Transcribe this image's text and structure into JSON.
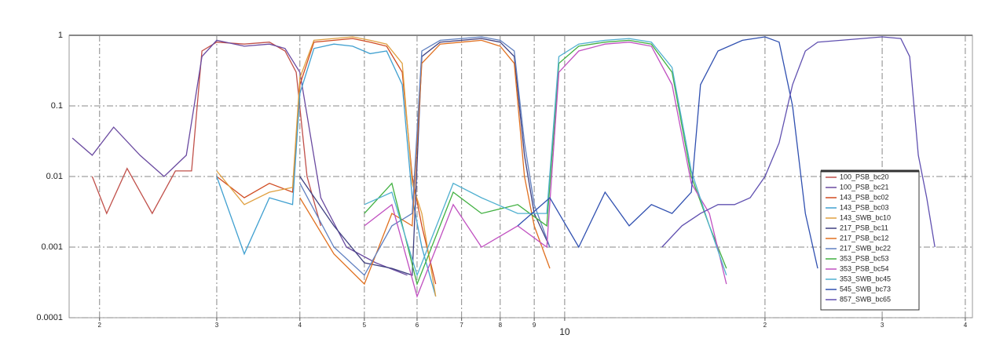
{
  "chart_data": {
    "type": "line",
    "log_x": true,
    "log_y": true,
    "grid": true,
    "legend": "lower right",
    "xlim": [
      1.8,
      41
    ],
    "ylim": [
      0.0001,
      1
    ],
    "xticks": [
      2,
      3,
      4,
      5,
      6,
      7,
      8,
      9,
      10,
      {
        "value": 20,
        "label": "2"
      },
      {
        "value": 30,
        "label": "3"
      },
      {
        "value": 40,
        "label": "4"
      }
    ],
    "yticks": [
      1,
      0.1,
      0.01,
      0.001,
      0.0001
    ],
    "series": [
      {
        "name": "100_PSB_bc20",
        "color": "#c0504a",
        "x": [
          1.95,
          2.05,
          2.2,
          2.4,
          2.6,
          2.75,
          2.85,
          3.0,
          3.3,
          3.6,
          3.8,
          3.95,
          4.1,
          4.3
        ],
        "values": [
          0.01,
          0.003,
          0.013,
          0.003,
          0.012,
          0.012,
          0.6,
          0.8,
          0.75,
          0.8,
          0.6,
          0.3,
          0.01,
          0.002
        ]
      },
      {
        "name": "100_PSB_bc21",
        "color": "#6a4aa0",
        "x": [
          1.82,
          1.95,
          2.1,
          2.3,
          2.5,
          2.7,
          2.85,
          3.0,
          3.3,
          3.6,
          3.8,
          4.0,
          4.3,
          4.7,
          5.2,
          5.8
        ],
        "values": [
          0.035,
          0.02,
          0.05,
          0.02,
          0.01,
          0.02,
          0.5,
          0.85,
          0.7,
          0.75,
          0.65,
          0.3,
          0.005,
          0.001,
          0.0006,
          0.0004
        ]
      },
      {
        "name": "143_PSB_bc02",
        "color": "#d04a20",
        "x": [
          3.0,
          3.3,
          3.6,
          3.9,
          4.0,
          4.2,
          4.5,
          4.8,
          5.1,
          5.4,
          5.7,
          5.9,
          6.1,
          6.4
        ],
        "values": [
          0.01,
          0.005,
          0.008,
          0.006,
          0.2,
          0.8,
          0.85,
          0.9,
          0.8,
          0.7,
          0.3,
          0.01,
          0.002,
          0.0003
        ]
      },
      {
        "name": "143_PSB_bc03",
        "color": "#40a0d0",
        "x": [
          3.0,
          3.3,
          3.6,
          3.9,
          4.0,
          4.2,
          4.5,
          4.8,
          5.1,
          5.4,
          5.7,
          5.9,
          6.1,
          6.4
        ],
        "values": [
          0.01,
          0.0008,
          0.005,
          0.004,
          0.15,
          0.65,
          0.75,
          0.7,
          0.55,
          0.6,
          0.2,
          0.005,
          0.001,
          0.0002
        ]
      },
      {
        "name": "143_SWB_bc10",
        "color": "#e0a040",
        "x": [
          3.0,
          3.3,
          3.6,
          3.9,
          4.0,
          4.2,
          4.5,
          4.8,
          5.1,
          5.4,
          5.7,
          5.9,
          6.1,
          6.4
        ],
        "values": [
          0.012,
          0.004,
          0.006,
          0.007,
          0.25,
          0.85,
          0.9,
          0.95,
          0.85,
          0.75,
          0.4,
          0.008,
          0.003,
          0.0002
        ]
      },
      {
        "name": "217_PSB_bc11",
        "color": "#404080",
        "x": [
          4.0,
          4.5,
          5.0,
          5.5,
          5.9,
          6.1,
          6.5,
          7.0,
          7.5,
          8.0,
          8.4,
          8.7,
          9.0,
          9.5
        ],
        "values": [
          0.01,
          0.002,
          0.0006,
          0.0005,
          0.0004,
          0.5,
          0.8,
          0.85,
          0.9,
          0.8,
          0.5,
          0.02,
          0.003,
          0.001
        ]
      },
      {
        "name": "217_PSB_bc12",
        "color": "#e07020",
        "x": [
          4.0,
          4.5,
          5.0,
          5.5,
          5.9,
          6.1,
          6.5,
          7.0,
          7.5,
          8.0,
          8.4,
          8.7,
          9.0,
          9.5
        ],
        "values": [
          0.005,
          0.0008,
          0.0003,
          0.003,
          0.002,
          0.4,
          0.75,
          0.8,
          0.85,
          0.7,
          0.4,
          0.01,
          0.002,
          0.0005
        ]
      },
      {
        "name": "217_SWB_bc22",
        "color": "#6080c0",
        "x": [
          4.0,
          4.5,
          5.0,
          5.5,
          5.9,
          6.1,
          6.5,
          7.0,
          7.5,
          8.0,
          8.4,
          8.7,
          9.0,
          9.5
        ],
        "values": [
          0.008,
          0.001,
          0.0004,
          0.002,
          0.003,
          0.6,
          0.85,
          0.9,
          0.95,
          0.85,
          0.6,
          0.03,
          0.004,
          0.001
        ]
      },
      {
        "name": "353_PSB_bc53",
        "color": "#40b040",
        "x": [
          5.0,
          5.5,
          6.0,
          6.8,
          7.5,
          8.5,
          9.4,
          9.8,
          10.5,
          11.5,
          12.5,
          13.5,
          14.5,
          15.5,
          16.5,
          17.5
        ],
        "values": [
          0.003,
          0.008,
          0.0003,
          0.006,
          0.003,
          0.004,
          0.002,
          0.4,
          0.7,
          0.8,
          0.85,
          0.75,
          0.3,
          0.01,
          0.002,
          0.0005
        ]
      },
      {
        "name": "353_PSB_bc54",
        "color": "#c050c0",
        "x": [
          5.0,
          5.5,
          6.0,
          6.8,
          7.5,
          8.5,
          9.4,
          9.8,
          10.5,
          11.5,
          12.5,
          13.5,
          14.5,
          15.5,
          16.5,
          17.5
        ],
        "values": [
          0.002,
          0.004,
          0.0002,
          0.004,
          0.001,
          0.002,
          0.001,
          0.3,
          0.6,
          0.75,
          0.8,
          0.7,
          0.2,
          0.008,
          0.003,
          0.0003
        ]
      },
      {
        "name": "353_SWB_bc45",
        "color": "#50b0d0",
        "x": [
          5.0,
          5.5,
          6.0,
          6.8,
          7.5,
          8.5,
          9.4,
          9.8,
          10.5,
          11.5,
          12.5,
          13.5,
          14.5,
          15.5,
          16.5,
          17.5
        ],
        "values": [
          0.004,
          0.006,
          0.0004,
          0.008,
          0.005,
          0.003,
          0.003,
          0.5,
          0.75,
          0.85,
          0.9,
          0.8,
          0.35,
          0.012,
          0.002,
          0.0004
        ]
      },
      {
        "name": "545_SWB_bc73",
        "color": "#3050b0",
        "x": [
          8.5,
          9.5,
          10.5,
          11.5,
          12.5,
          13.5,
          14.5,
          15.5,
          16.0,
          17,
          18.5,
          20,
          21,
          22,
          23,
          24
        ],
        "values": [
          0.002,
          0.005,
          0.001,
          0.006,
          0.002,
          0.004,
          0.003,
          0.006,
          0.2,
          0.6,
          0.85,
          0.95,
          0.8,
          0.1,
          0.003,
          0.0005
        ]
      },
      {
        "name": "857_SWB_bc65",
        "color": "#6050b0",
        "x": [
          14,
          15,
          16,
          17,
          18,
          19,
          20,
          21,
          22,
          23,
          24,
          26,
          28,
          30,
          32,
          33,
          34,
          35,
          36
        ],
        "values": [
          0.001,
          0.002,
          0.003,
          0.004,
          0.004,
          0.005,
          0.01,
          0.03,
          0.2,
          0.6,
          0.8,
          0.85,
          0.9,
          0.95,
          0.9,
          0.5,
          0.02,
          0.005,
          0.001
        ]
      }
    ]
  }
}
